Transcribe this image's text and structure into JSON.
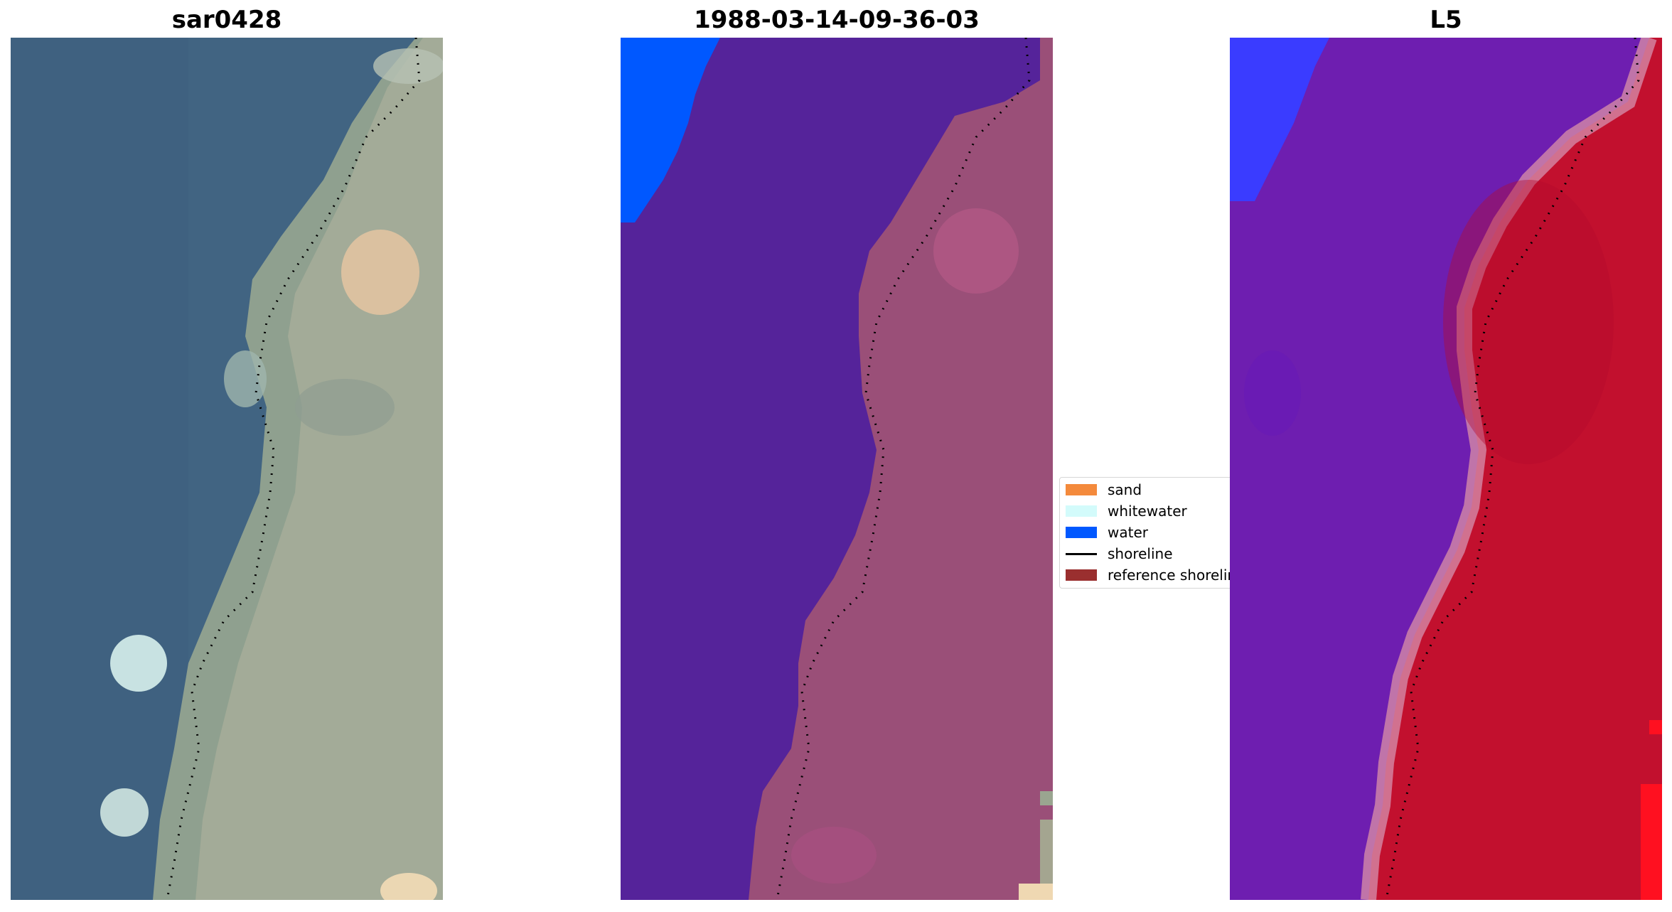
{
  "panels": [
    {
      "title": "sar0428"
    },
    {
      "title": "1988-03-14-09-36-03"
    },
    {
      "title": "L5"
    }
  ],
  "legend": {
    "items": [
      {
        "label": "sand",
        "color": "#f48a3c",
        "kind": "patch"
      },
      {
        "label": "whitewater",
        "color": "#d3fbfb",
        "kind": "patch"
      },
      {
        "label": "water",
        "color": "#0058ff",
        "kind": "patch"
      },
      {
        "label": "shoreline",
        "color": "#000000",
        "kind": "line"
      },
      {
        "label": "reference shoreline",
        "color": "#9a2f2f",
        "kind": "patch"
      }
    ]
  },
  "colors": {
    "rgb_water": "#3f5f7d",
    "rgb_land": "#8f9e92",
    "class_water_overlay": "#55239a",
    "class_water_label": "#0058ff",
    "class_land": "#9a4f78",
    "index_water": "#6e1eb0",
    "index_land": "#c2102e",
    "index_blue": "#3a3cff"
  }
}
